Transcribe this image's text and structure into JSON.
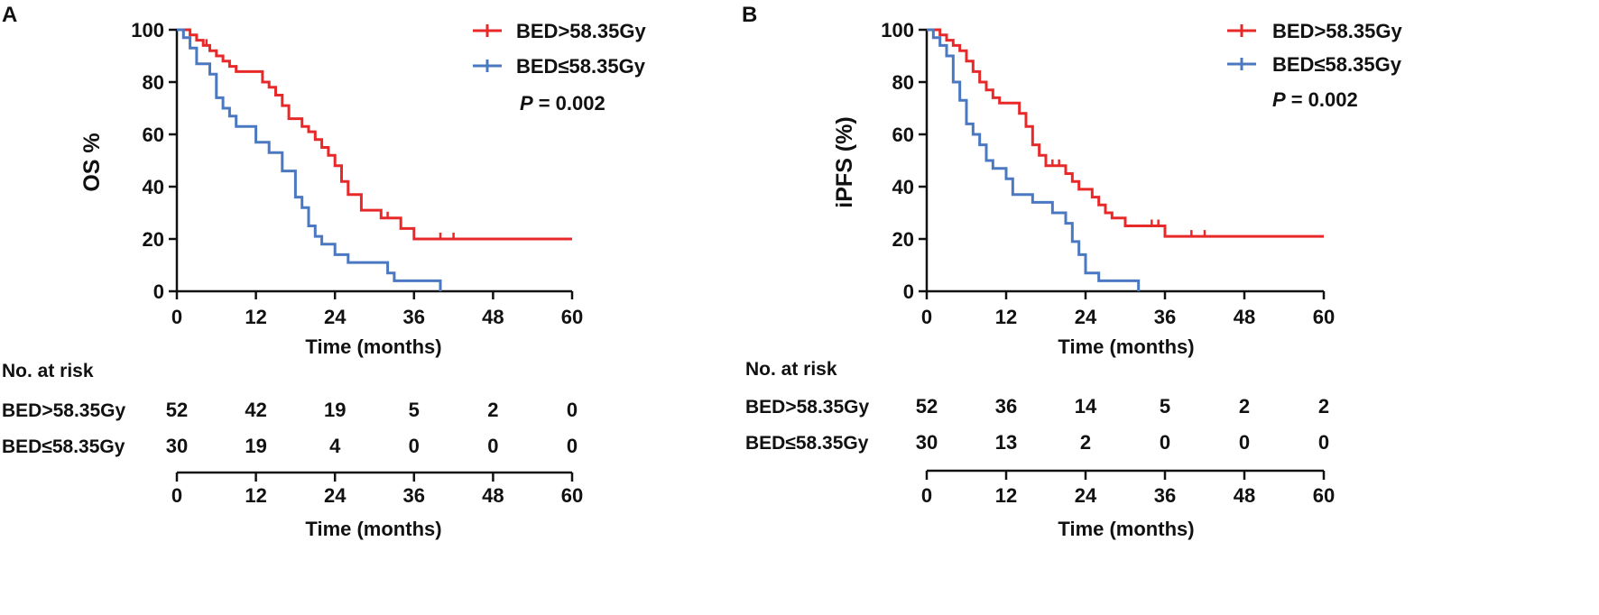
{
  "colors": {
    "high": "#e8292a",
    "low": "#4a78c2",
    "axis": "#111111"
  },
  "chart_data": [
    {
      "type": "line",
      "panel_label": "A",
      "ylabel": "OS %",
      "xlabel": "Time (months)",
      "xlim": [
        0,
        60
      ],
      "ylim": [
        0,
        100
      ],
      "xticks": [
        "0",
        "12",
        "24",
        "36",
        "48",
        "60"
      ],
      "yticks": [
        "0",
        "20",
        "40",
        "60",
        "80",
        "100"
      ],
      "legend_position": "top-right",
      "p_label": "P",
      "p_value": "= 0.002",
      "series": [
        {
          "name": "BED>58.35Gy",
          "color_key": "high",
          "x": [
            0,
            2,
            3,
            4,
            5,
            6,
            7,
            8,
            9,
            10,
            13,
            14,
            15,
            16,
            17,
            18,
            19,
            20,
            21,
            22,
            23,
            24,
            25,
            26,
            28,
            31,
            34,
            36,
            60
          ],
          "y": [
            100,
            98,
            96,
            94,
            92,
            90,
            88,
            86,
            84,
            84,
            80,
            78,
            75,
            71,
            66,
            66,
            63,
            61,
            58,
            55,
            52,
            48,
            42,
            37,
            31,
            28,
            24,
            20,
            20
          ],
          "censor_x": [
            4.5,
            9,
            32,
            40,
            42
          ]
        },
        {
          "name": "BED≤58.35Gy",
          "color_key": "low",
          "x": [
            0,
            1,
            2,
            3,
            5,
            6,
            7,
            8,
            9,
            12,
            14,
            16,
            17,
            18,
            19,
            20,
            21,
            22,
            24,
            26,
            28,
            32,
            33,
            38,
            40
          ],
          "y": [
            100,
            97,
            93,
            87,
            83,
            74,
            70,
            67,
            63,
            57,
            53,
            46,
            46,
            36,
            32,
            25,
            21,
            18,
            14,
            11,
            11,
            7,
            4,
            4,
            0
          ],
          "censor_x": []
        }
      ],
      "risk_table": {
        "title": "No. at risk",
        "xlabel": "Time (months)",
        "times": [
          "0",
          "12",
          "24",
          "36",
          "48",
          "60"
        ],
        "rows": [
          {
            "label": "BED>58.35Gy",
            "counts": [
              "52",
              "42",
              "19",
              "5",
              "2",
              "0"
            ]
          },
          {
            "label": "BED≤58.35Gy",
            "counts": [
              "30",
              "19",
              "4",
              "0",
              "0",
              "0"
            ]
          }
        ]
      }
    },
    {
      "type": "line",
      "panel_label": "B",
      "ylabel": "iPFS (%)",
      "xlabel": "Time (months)",
      "xlim": [
        0,
        60
      ],
      "ylim": [
        0,
        100
      ],
      "xticks": [
        "0",
        "12",
        "24",
        "36",
        "48",
        "60"
      ],
      "yticks": [
        "0",
        "20",
        "40",
        "60",
        "80",
        "100"
      ],
      "legend_position": "top-right",
      "p_label": "P",
      "p_value": "= 0.002",
      "series": [
        {
          "name": "BED>58.35Gy",
          "color_key": "high",
          "x": [
            0,
            2,
            3,
            4,
            5,
            6,
            7,
            8,
            9,
            10,
            11,
            14,
            15,
            16,
            17,
            18,
            21,
            22,
            23,
            25,
            26,
            27,
            28,
            30,
            33,
            36,
            60
          ],
          "y": [
            100,
            98,
            96,
            94,
            92,
            88,
            84,
            80,
            77,
            74,
            72,
            68,
            63,
            56,
            52,
            48,
            45,
            42,
            39,
            36,
            33,
            30,
            28,
            25,
            25,
            21,
            21
          ],
          "censor_x": [
            19,
            20,
            25,
            27,
            34,
            35,
            40,
            42
          ]
        },
        {
          "name": "BED≤58.35Gy",
          "color_key": "low",
          "x": [
            0,
            1,
            2,
            3,
            4,
            5,
            6,
            7,
            8,
            9,
            10,
            12,
            13,
            16,
            19,
            21,
            22,
            23,
            24,
            26,
            32
          ],
          "y": [
            100,
            97,
            94,
            90,
            80,
            73,
            64,
            60,
            56,
            50,
            47,
            43,
            37,
            34,
            30,
            26,
            19,
            14,
            7,
            4,
            0
          ],
          "censor_x": []
        }
      ],
      "risk_table": {
        "title": "No. at risk",
        "xlabel": "Time (months)",
        "times": [
          "0",
          "12",
          "24",
          "36",
          "48",
          "60"
        ],
        "rows": [
          {
            "label": "BED>58.35Gy",
            "counts": [
              "52",
              "36",
              "14",
              "5",
              "2",
              "2"
            ]
          },
          {
            "label": "BED≤58.35Gy",
            "counts": [
              "30",
              "13",
              "2",
              "0",
              "0",
              "0"
            ]
          }
        ]
      }
    }
  ]
}
